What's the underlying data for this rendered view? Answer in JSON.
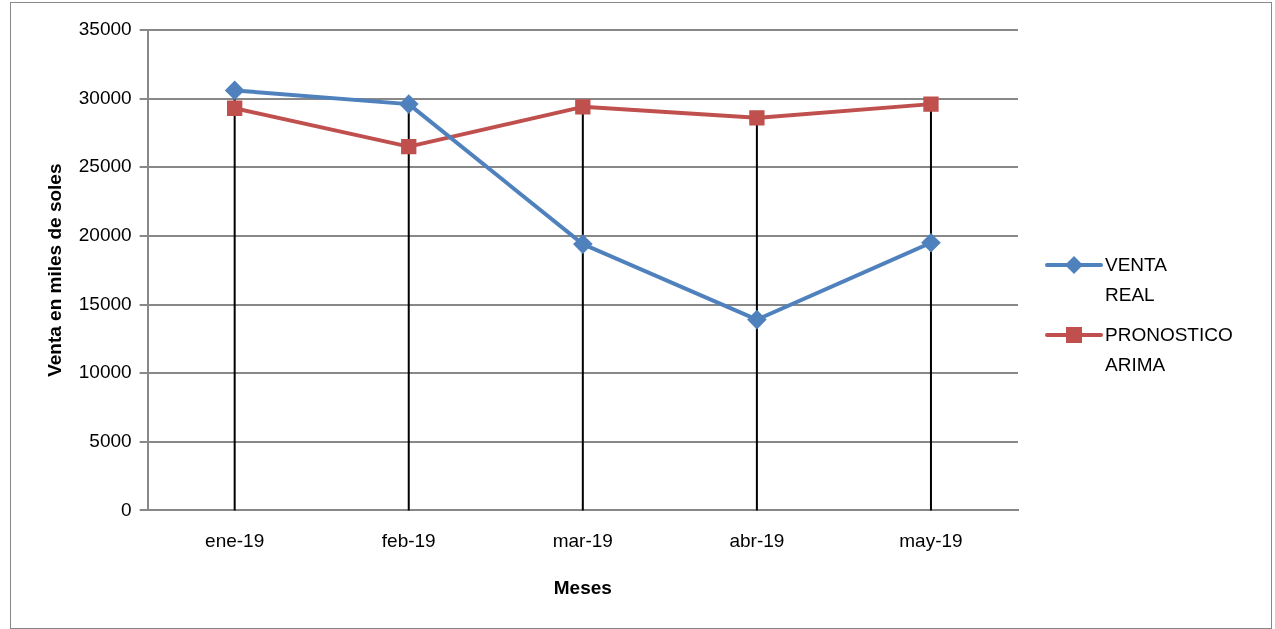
{
  "chart_data": {
    "type": "line",
    "xlabel": "Meses",
    "ylabel": "Venta en miles de soles",
    "categories": [
      "ene-19",
      "feb-19",
      "mar-19",
      "abr-19",
      "may-19"
    ],
    "series": [
      {
        "name": "VENTA REAL",
        "color": "#4f81bd",
        "marker": "diamond",
        "values": [
          30600,
          29600,
          19400,
          13900,
          19500
        ]
      },
      {
        "name": "PRONOSTICO ARIMA",
        "color": "#c0504d",
        "marker": "square",
        "values": [
          29300,
          26500,
          29400,
          28600,
          29600
        ]
      }
    ],
    "ylim": [
      0,
      35000
    ],
    "yticks": [
      0,
      5000,
      10000,
      15000,
      20000,
      25000,
      30000,
      35000
    ],
    "grid": true,
    "legend": "right"
  }
}
